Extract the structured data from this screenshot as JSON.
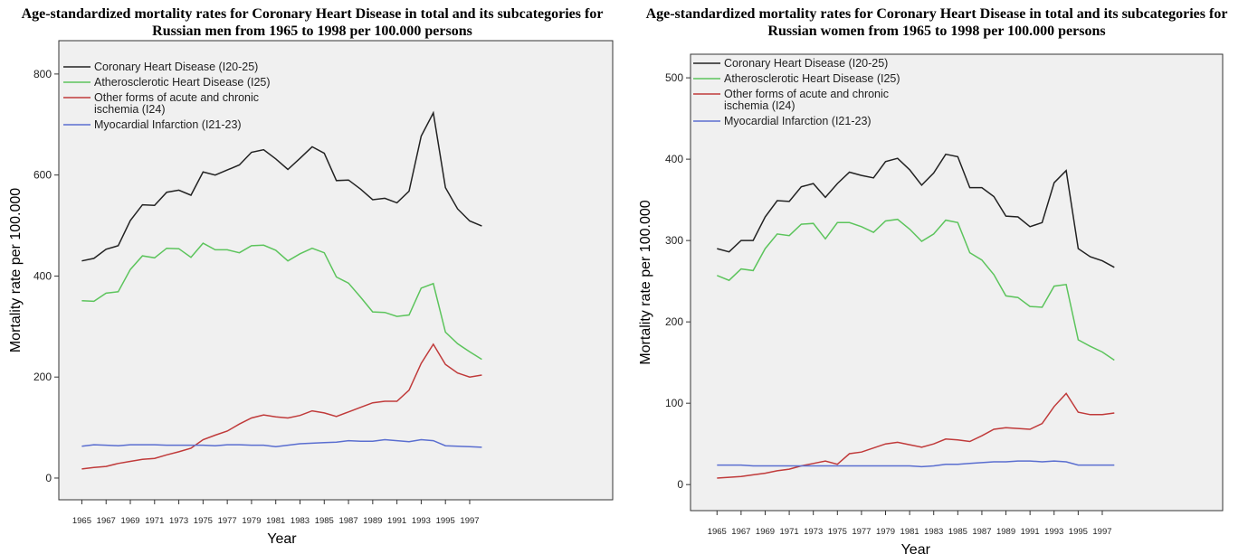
{
  "chart_data": [
    {
      "type": "line",
      "title": "Age-standardized mortality rates for Coronary Heart Disease in total and its subcategories for Russian men from 1965 to 1998 per 100.000 persons",
      "x_label": "Year",
      "y_label": "Mortality rate per 100.000",
      "x": [
        1965,
        1966,
        1967,
        1968,
        1969,
        1970,
        1971,
        1972,
        1973,
        1974,
        1975,
        1976,
        1977,
        1978,
        1979,
        1980,
        1981,
        1982,
        1983,
        1984,
        1985,
        1986,
        1987,
        1988,
        1989,
        1990,
        1991,
        1992,
        1993,
        1994,
        1995,
        1996,
        1997,
        1998
      ],
      "xlim": [
        1963.1,
        2008.8
      ],
      "xticks": [
        1965,
        1967,
        1969,
        1971,
        1973,
        1975,
        1977,
        1979,
        1981,
        1983,
        1985,
        1987,
        1989,
        1991,
        1993,
        1995,
        1997
      ],
      "ylim": [
        -43,
        866
      ],
      "yticks": [
        0,
        200,
        400,
        600,
        800
      ],
      "legend": "upper left",
      "grid": false,
      "series": [
        {
          "name": "Coronary Heart Disease (I20-25)",
          "color": "#222222",
          "values": [
            430,
            435,
            453,
            460,
            510,
            541,
            540,
            566,
            570,
            560,
            606,
            600,
            610,
            620,
            645,
            650,
            632,
            611,
            633,
            656,
            643,
            589,
            590,
            572,
            551,
            554,
            545,
            568,
            677,
            723,
            575,
            533,
            509,
            499
          ]
        },
        {
          "name": "Atherosclerotic Heart Disease (I25)",
          "color": "#5cc45c",
          "values": [
            351,
            350,
            366,
            369,
            413,
            440,
            436,
            455,
            454,
            437,
            465,
            452,
            452,
            446,
            460,
            461,
            451,
            430,
            444,
            455,
            446,
            398,
            386,
            358,
            329,
            328,
            320,
            323,
            376,
            385,
            289,
            266,
            250,
            235
          ]
        },
        {
          "name": "Other forms of acute and chronic ischemia (I24)",
          "color": "#c03a3a",
          "values": [
            18,
            21,
            23,
            29,
            33,
            37,
            39,
            46,
            52,
            59,
            76,
            85,
            93,
            107,
            119,
            125,
            121,
            119,
            124,
            133,
            129,
            122,
            131,
            140,
            149,
            152,
            152,
            174,
            227,
            265,
            225,
            208,
            200,
            204
          ]
        },
        {
          "name": "Myocardial Infarction (I21-23)",
          "color": "#5a6ed0",
          "values": [
            63,
            66,
            65,
            64,
            66,
            66,
            66,
            65,
            65,
            65,
            65,
            64,
            66,
            66,
            65,
            65,
            62,
            65,
            68,
            69,
            70,
            71,
            74,
            73,
            73,
            76,
            74,
            72,
            76,
            74,
            64,
            63,
            62,
            61
          ]
        }
      ]
    },
    {
      "type": "line",
      "title": "Age-standardized mortality rates for Coronary Heart Disease in total and its subcategories for Russian women from 1965 to 1998 per 100.000 persons",
      "x_label": "Year",
      "y_label": "Mortality rate per 100.000",
      "x": [
        1965,
        1966,
        1967,
        1968,
        1969,
        1970,
        1971,
        1972,
        1973,
        1974,
        1975,
        1976,
        1977,
        1978,
        1979,
        1980,
        1981,
        1982,
        1983,
        1984,
        1985,
        1986,
        1987,
        1988,
        1989,
        1990,
        1991,
        1992,
        1993,
        1994,
        1995,
        1996,
        1997,
        1998
      ],
      "xlim": [
        1962.8,
        2007.0
      ],
      "xticks": [
        1965,
        1967,
        1969,
        1971,
        1973,
        1975,
        1977,
        1979,
        1981,
        1983,
        1985,
        1987,
        1989,
        1991,
        1993,
        1995,
        1997
      ],
      "ylim": [
        -32,
        529
      ],
      "yticks": [
        0,
        100,
        200,
        300,
        400,
        500
      ],
      "legend": "upper left",
      "grid": false,
      "series": [
        {
          "name": "Coronary Heart Disease (I20-25)",
          "color": "#222222",
          "values": [
            290,
            286,
            300,
            300,
            329,
            349,
            348,
            366,
            370,
            353,
            370,
            384,
            380,
            377,
            397,
            401,
            387,
            368,
            383,
            406,
            403,
            365,
            365,
            354,
            330,
            329,
            317,
            322,
            371,
            386,
            290,
            280,
            275,
            267
          ]
        },
        {
          "name": "Atherosclerotic Heart Disease (I25)",
          "color": "#5cc45c",
          "values": [
            257,
            251,
            265,
            263,
            290,
            308,
            306,
            320,
            321,
            302,
            322,
            322,
            317,
            310,
            324,
            326,
            314,
            299,
            308,
            325,
            322,
            285,
            276,
            258,
            232,
            230,
            219,
            218,
            244,
            246,
            178,
            170,
            163,
            153
          ]
        },
        {
          "name": "Other forms of acute and chronic ischemia (I24)",
          "color": "#c03a3a",
          "values": [
            8,
            9,
            10,
            12,
            14,
            17,
            19,
            23,
            26,
            29,
            25,
            38,
            40,
            45,
            50,
            52,
            49,
            46,
            50,
            56,
            55,
            53,
            60,
            68,
            70,
            69,
            68,
            75,
            96,
            112,
            89,
            86,
            86,
            88
          ]
        },
        {
          "name": "Myocardial Infarction (I21-23)",
          "color": "#5a6ed0",
          "values": [
            24,
            24,
            24,
            23,
            23,
            23,
            23,
            23,
            23,
            23,
            23,
            23,
            23,
            23,
            23,
            23,
            23,
            22,
            23,
            25,
            25,
            26,
            27,
            28,
            28,
            29,
            29,
            28,
            29,
            28,
            24,
            24,
            24,
            24
          ]
        }
      ]
    }
  ]
}
